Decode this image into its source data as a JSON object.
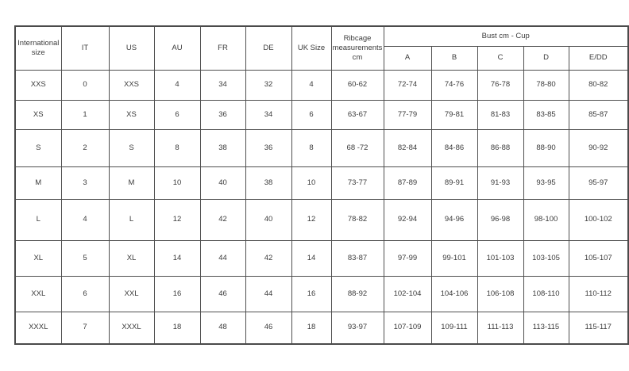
{
  "chart_data": {
    "type": "table",
    "header": {
      "left_cols": [
        "International size",
        "IT",
        "US",
        "AU",
        "FR",
        "DE",
        "UK Size",
        "Ribcage measurements cm"
      ],
      "bust_group": "Bust cm - Cup",
      "cup_cols": [
        "A",
        "B",
        "C",
        "D",
        "E/DD"
      ]
    },
    "rows": [
      [
        "XXS",
        "0",
        "XXS",
        "4",
        "34",
        "32",
        "4",
        "60-62",
        "72-74",
        "74-76",
        "76-78",
        "78-80",
        "80-82"
      ],
      [
        "XS",
        "1",
        "XS",
        "6",
        "36",
        "34",
        "6",
        "63-67",
        "77-79",
        "79-81",
        "81-83",
        "83-85",
        "85-87"
      ],
      [
        "S",
        "2",
        "S",
        "8",
        "38",
        "36",
        "8",
        "68 -72",
        "82-84",
        "84-86",
        "86-88",
        "88-90",
        "90-92"
      ],
      [
        "M",
        "3",
        "M",
        "10",
        "40",
        "38",
        "10",
        "73-77",
        "87-89",
        "89-91",
        "91-93",
        "93-95",
        "95-97"
      ],
      [
        "L",
        "4",
        "L",
        "12",
        "42",
        "40",
        "12",
        "78-82",
        "92-94",
        "94-96",
        "96-98",
        "98-100",
        "100-102"
      ],
      [
        "XL",
        "5",
        "XL",
        "14",
        "44",
        "42",
        "14",
        "83-87",
        "97-99",
        "99-101",
        "101-103",
        "103-105",
        "105-107"
      ],
      [
        "XXL",
        "6",
        "XXL",
        "16",
        "46",
        "44",
        "16",
        "88-92",
        "102-104",
        "104-106",
        "106-108",
        "108-110",
        "110-112"
      ],
      [
        "XXXL",
        "7",
        "XXXL",
        "18",
        "48",
        "46",
        "18",
        "93-97",
        "107-109",
        "109-111",
        "111-113",
        "113-115",
        "115-117"
      ]
    ]
  }
}
